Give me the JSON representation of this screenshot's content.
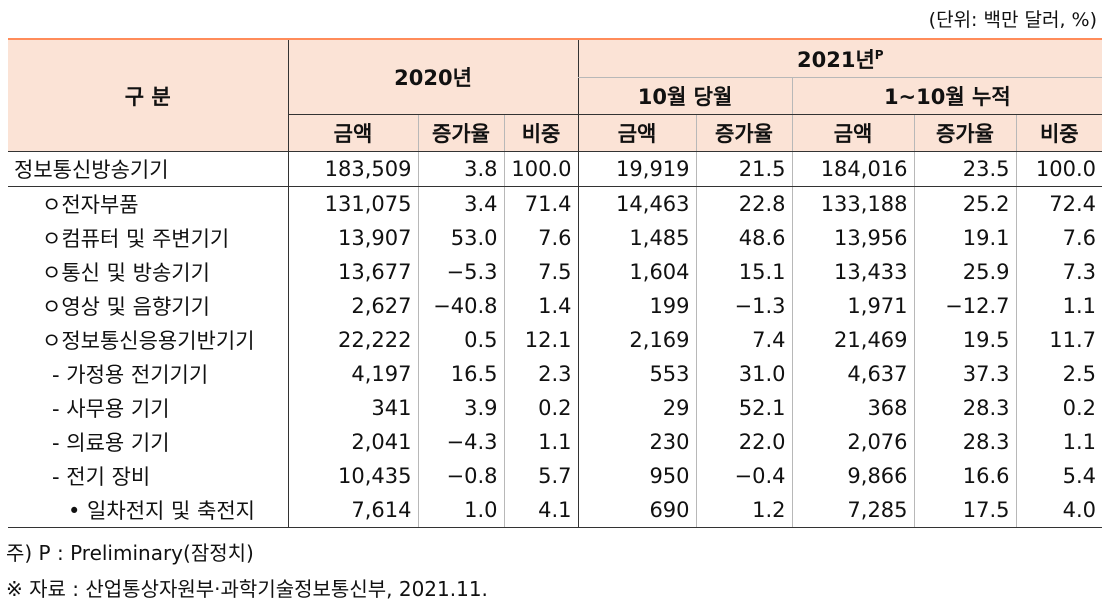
{
  "unit_note": "(단위: 백만 달러, %)",
  "header": {
    "category": "구  분",
    "year2020": "2020년",
    "year2021": "2021년",
    "year2021_sup": "P",
    "oct_month": "10월 당월",
    "oct_cumulative": "1~10월 누적",
    "amount": "금액",
    "growth": "증가율",
    "share": "비중"
  },
  "rows": [
    {
      "label": "정보통신방송기기",
      "indent": 0,
      "v": [
        "183,509",
        "3.8",
        "100.0",
        "19,919",
        "21.5",
        "184,016",
        "23.5",
        "100.0"
      ]
    },
    {
      "label": "ㅇ전자부품",
      "indent": 1,
      "v": [
        "131,075",
        "3.4",
        "71.4",
        "14,463",
        "22.8",
        "133,188",
        "25.2",
        "72.4"
      ]
    },
    {
      "label": "ㅇ컴퓨터 및 주변기기",
      "indent": 1,
      "v": [
        "13,907",
        "53.0",
        "7.6",
        "1,485",
        "48.6",
        "13,956",
        "19.1",
        "7.6"
      ]
    },
    {
      "label": "ㅇ통신 및 방송기기",
      "indent": 1,
      "v": [
        "13,677",
        "−5.3",
        "7.5",
        "1,604",
        "15.1",
        "13,433",
        "25.9",
        "7.3"
      ]
    },
    {
      "label": "ㅇ영상 및 음향기기",
      "indent": 1,
      "v": [
        "2,627",
        "−40.8",
        "1.4",
        "199",
        "−1.3",
        "1,971",
        "−12.7",
        "1.1"
      ]
    },
    {
      "label": "ㅇ정보통신응용기반기기",
      "indent": 1,
      "v": [
        "22,222",
        "0.5",
        "12.1",
        "2,169",
        "7.4",
        "21,469",
        "19.5",
        "11.7"
      ]
    },
    {
      "label": "- 가정용 전기기기",
      "indent": 2,
      "v": [
        "4,197",
        "16.5",
        "2.3",
        "553",
        "31.0",
        "4,637",
        "37.3",
        "2.5"
      ]
    },
    {
      "label": "- 사무용 기기",
      "indent": 2,
      "v": [
        "341",
        "3.9",
        "0.2",
        "29",
        "52.1",
        "368",
        "28.3",
        "0.2"
      ]
    },
    {
      "label": "- 의료용 기기",
      "indent": 2,
      "v": [
        "2,041",
        "−4.3",
        "1.1",
        "230",
        "22.0",
        "2,076",
        "28.3",
        "1.1"
      ]
    },
    {
      "label": "- 전기 장비",
      "indent": 2,
      "v": [
        "10,435",
        "−0.8",
        "5.7",
        "950",
        "−0.4",
        "9,866",
        "16.6",
        "5.4"
      ]
    },
    {
      "label": "• 일차전지 및 축전지",
      "indent": 3,
      "v": [
        "7,614",
        "1.0",
        "4.1",
        "690",
        "1.2",
        "7,285",
        "17.5",
        "4.0"
      ]
    }
  ],
  "notes": {
    "preliminary": "주) P : Preliminary(잠정치)",
    "source": "※ 자료 : 산업통상자원부·과학기술정보통신부, 2021.11."
  }
}
